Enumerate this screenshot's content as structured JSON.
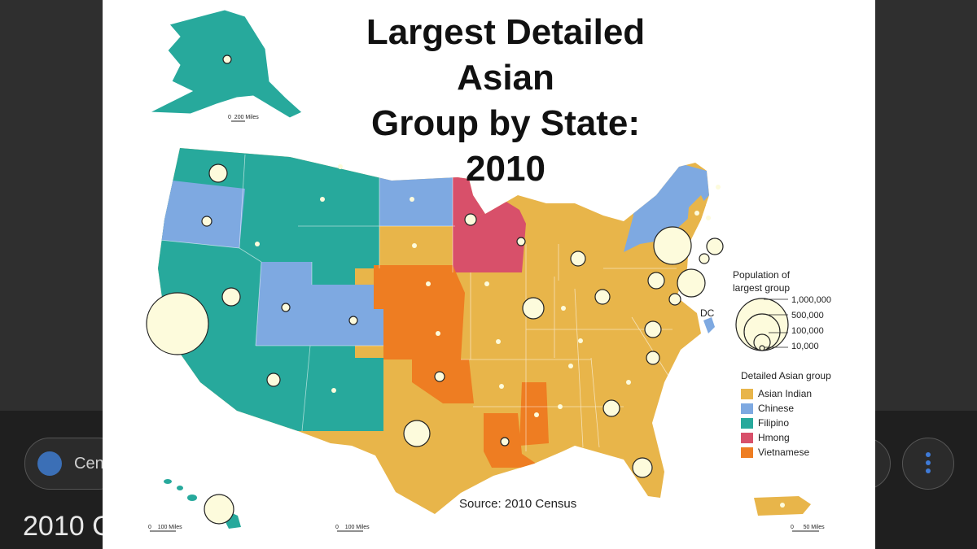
{
  "page": {
    "chip_label": "Cen",
    "result_title": "2010 C"
  },
  "figure": {
    "title_line1": "Largest Detailed Asian",
    "title_line2": "Group by State: 2010",
    "source": "Source: 2010 Census",
    "dc_label": "DC",
    "population_legend": {
      "title_line1": "Population of",
      "title_line2": "largest group",
      "values": [
        "1,000,000",
        "500,000",
        "100,000",
        "10,000"
      ]
    },
    "group_legend": {
      "title": "Detailed Asian group",
      "items": [
        {
          "label": "Asian Indian",
          "color": "#E8B54A"
        },
        {
          "label": "Chinese",
          "color": "#7EA9E1"
        },
        {
          "label": "Filipino",
          "color": "#27A99C"
        },
        {
          "label": "Hmong",
          "color": "#D8506A"
        },
        {
          "label": "Vietnamese",
          "color": "#EE7D22"
        }
      ]
    },
    "scale_bars": {
      "alaska": {
        "zero": "0",
        "label": "200 Miles"
      },
      "hawaii": {
        "zero": "0",
        "label": "100 Miles"
      },
      "lower48": {
        "zero": "0",
        "label": "100 Miles"
      },
      "puerto_rico": {
        "zero": "0",
        "label": "50 Miles"
      }
    },
    "bubble_fill": "#FDFBDC"
  }
}
